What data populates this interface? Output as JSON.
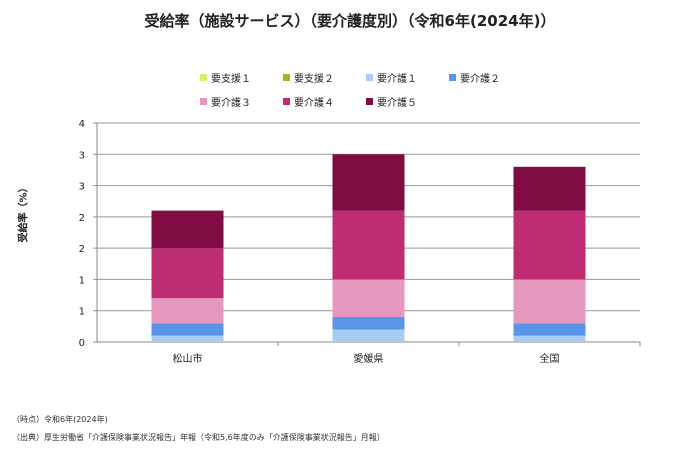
{
  "chart_data": {
    "type": "bar",
    "stacked": true,
    "title": "受給率（施設サービス）（要介護度別）（令和6年(2024年)）",
    "ylabel": "受給率（%）",
    "xlabel": "",
    "ylim": [
      0,
      3.5
    ],
    "ytick_values": [
      0,
      0.5,
      1,
      1.5,
      2,
      2.5,
      3,
      3.5
    ],
    "ytick_labels": [
      "0",
      "1",
      "1",
      "2",
      "2",
      "3",
      "3",
      "4"
    ],
    "grid": true,
    "legend_position": "top",
    "categories": [
      "松山市",
      "愛媛県",
      "全国"
    ],
    "series": [
      {
        "name": "要支援１",
        "color": "#d7f06a",
        "values": [
          0,
          0,
          0
        ]
      },
      {
        "name": "要支援２",
        "color": "#9bbb1c",
        "values": [
          0,
          0,
          0
        ]
      },
      {
        "name": "要介護１",
        "color": "#a8cdf5",
        "values": [
          0.1,
          0.2,
          0.1
        ]
      },
      {
        "name": "要介護２",
        "color": "#5b95ea",
        "values": [
          0.2,
          0.2,
          0.2
        ]
      },
      {
        "name": "要介護３",
        "color": "#e697bd",
        "values": [
          0.4,
          0.6,
          0.7
        ]
      },
      {
        "name": "要介護４",
        "color": "#be2c72",
        "values": [
          0.8,
          1.1,
          1.1
        ]
      },
      {
        "name": "要介護５",
        "color": "#7f0d44",
        "values": [
          0.6,
          0.9,
          0.7
        ]
      }
    ]
  },
  "notes": [
    "（時点）令和6年(2024年)",
    "（出典）厚生労働省「介護保険事業状況報告」年報（令和5,6年度のみ「介護保険事業状況報告」月報）"
  ]
}
